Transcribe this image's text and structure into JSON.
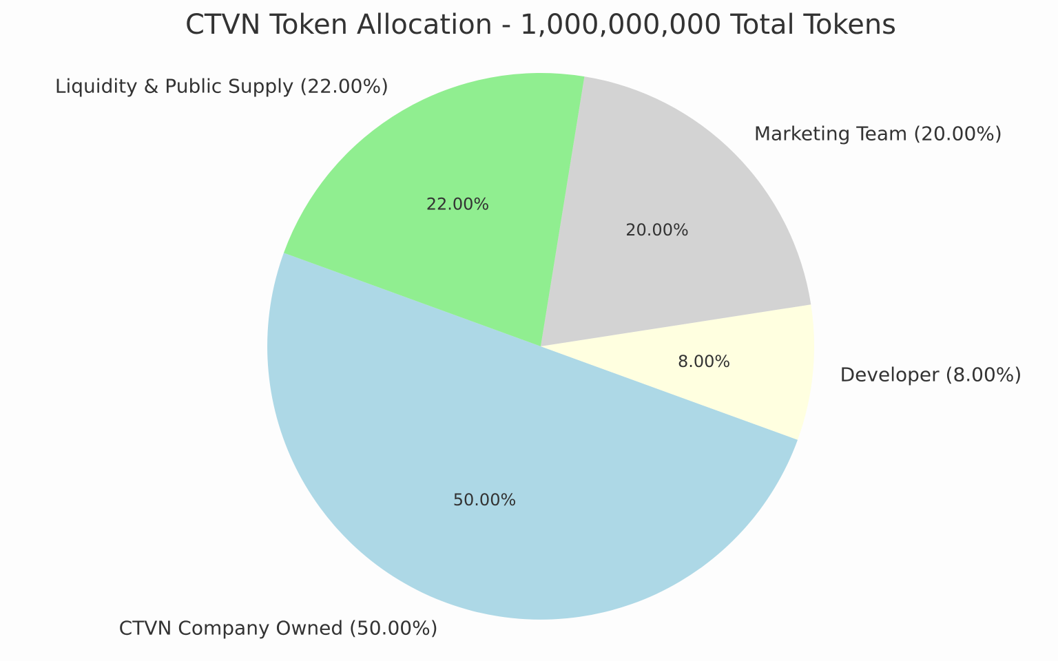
{
  "chart_data": {
    "type": "pie",
    "title": "CTVN Token Allocation - 1,000,000,000 Total Tokens",
    "categories": [
      "CTVN Company Owned (50.00%)",
      "Developer (8.00%)",
      "Marketing Team (20.00%)",
      "Liquidity & Public Supply (22.00%)"
    ],
    "values": [
      50,
      8,
      20,
      22
    ],
    "value_labels": [
      "50.00%",
      "8.00%",
      "20.00%",
      "22.00%"
    ],
    "colors": [
      "#add8e6",
      "#ffffe0",
      "#d3d3d3",
      "#90ee90"
    ]
  }
}
